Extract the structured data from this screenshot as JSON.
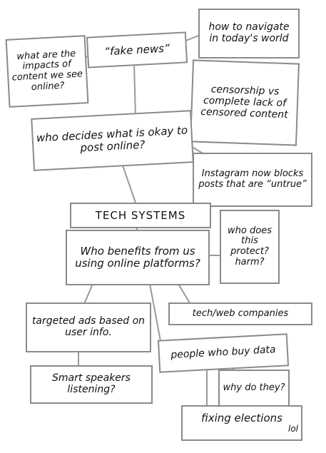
{
  "nodes": {
    "impacts": "what are the impacts of content we see online?",
    "fake_news": "“fake news”",
    "navigate": "how to navigate in today's world",
    "censorship": "censorship vs complete lack of censored content",
    "who_decides": "who decides what is okay to post online?",
    "instagram": "Instagram now blocks posts that are “untrue”",
    "tech_systems": "TECH SYSTEMS",
    "who_benefits": "Who benefits from us using online platforms?",
    "who_protect": "who does this protect? harm?",
    "targeted_ads": "targeted ads based on user info.",
    "tech_companies": "tech/web companies",
    "people_buy": "people who buy data",
    "smart_speakers": "Smart speakers listening?",
    "why_do_they": "why do they?",
    "fixing_elections": "fixing elections",
    "lol": "lol"
  },
  "colors": {
    "border": "#8a8a8a",
    "ink": "#111111",
    "line": "#999999"
  }
}
